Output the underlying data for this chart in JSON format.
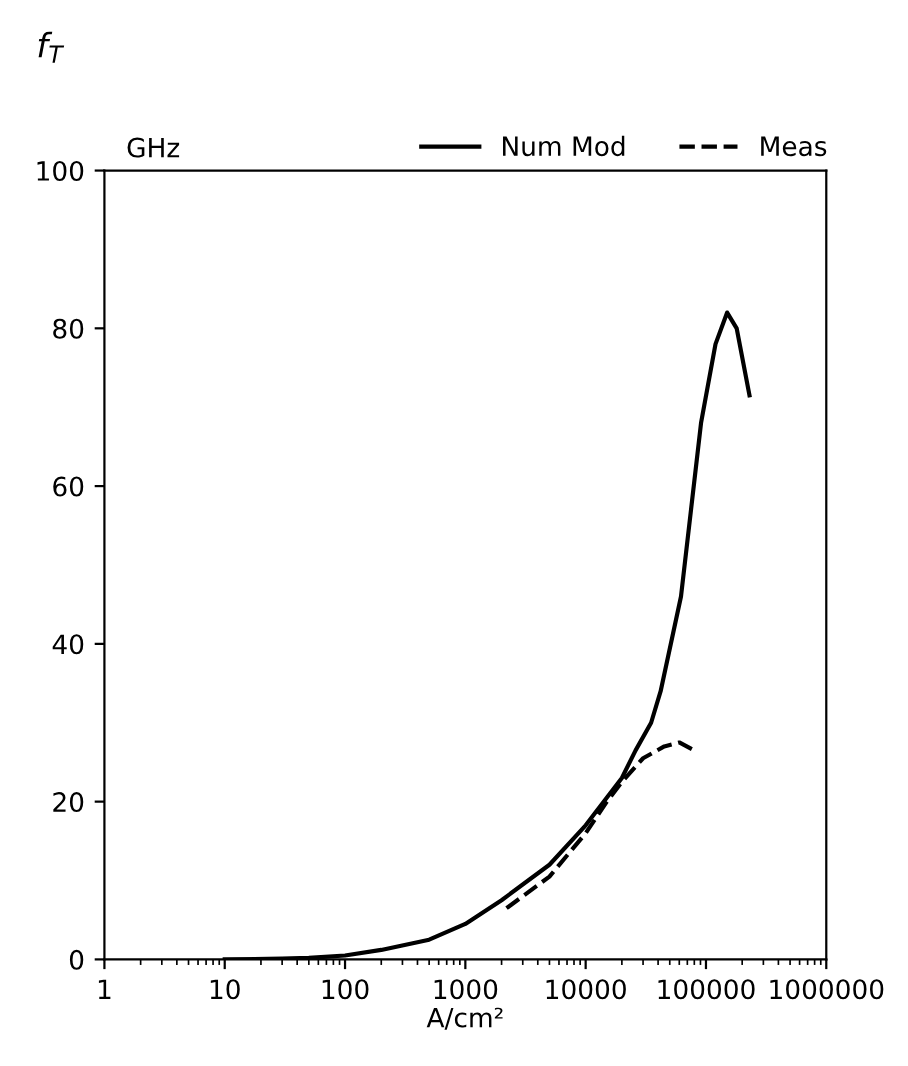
{
  "chart_data": {
    "type": "line",
    "title": "f$_{T}$",
    "ylabel": "GHz",
    "xlabel": "A/cm²",
    "log": "x",
    "xlim": [
      1,
      1000000
    ],
    "xticks": [
      1,
      10,
      100,
      1000,
      10000,
      100000,
      1000000
    ],
    "ylim": [
      0,
      100
    ],
    "yticks": [
      0,
      20,
      40,
      60,
      80,
      100
    ],
    "legend": "top right",
    "grid": false,
    "series": [
      {
        "name": "Num Mod",
        "color": "#000000",
        "line_style": "solid",
        "x": [
          10,
          30,
          50,
          100,
          200,
          500,
          1000,
          2000,
          5000,
          10000,
          20000,
          26000,
          35000,
          42000,
          62000,
          91000,
          120000,
          150000,
          180000,
          230000
        ],
        "values": [
          0,
          0.1,
          0.2,
          0.5,
          1.2,
          2.5,
          4.5,
          7.5,
          12,
          17,
          23,
          26.5,
          30,
          34,
          46,
          68,
          78,
          82,
          80,
          71.5
        ]
      },
      {
        "name": "Meas",
        "color": "#000000",
        "line_style": "dashed",
        "x": [
          2200,
          3000,
          5000,
          10000,
          15000,
          20000,
          30000,
          45000,
          60000,
          80000
        ],
        "values": [
          6.5,
          8,
          10.5,
          16,
          20,
          22.5,
          25.5,
          27,
          27.5,
          26.5
        ]
      }
    ]
  }
}
